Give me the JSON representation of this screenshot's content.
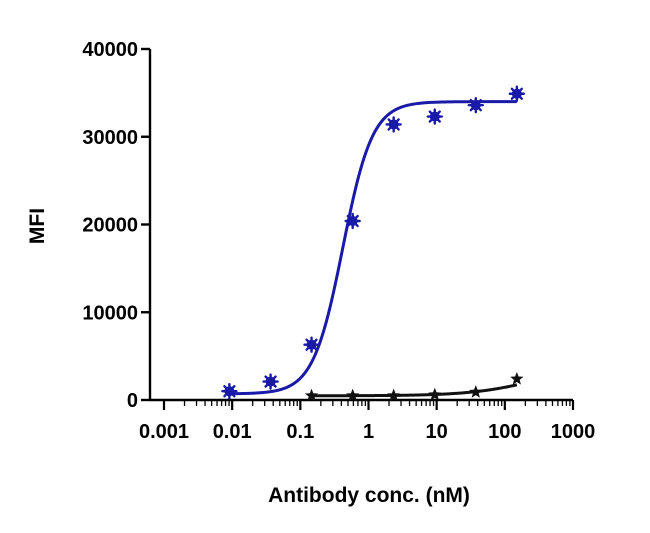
{
  "chart_data": {
    "type": "scatter",
    "title": "",
    "xlabel": "Antibody conc. (nM)",
    "ylabel": "MFI",
    "x_scale": "log",
    "xlim": [
      0.001,
      1000
    ],
    "ylim": [
      0,
      40000
    ],
    "x_ticks": [
      0.001,
      0.01,
      0.1,
      1,
      10,
      100,
      1000
    ],
    "x_tick_labels": [
      "0.001",
      "0.01",
      "0.1",
      "1",
      "10",
      "100",
      "1000"
    ],
    "y_ticks": [
      0,
      10000,
      20000,
      30000,
      40000
    ],
    "y_tick_labels": [
      "0",
      "10000",
      "20000",
      "30000",
      "40000"
    ],
    "grid": false,
    "legend": "none",
    "series": [
      {
        "color": "#1a1aa8",
        "marker": "asterisk",
        "x": [
          0.0091,
          0.0366,
          0.146,
          0.586,
          2.34,
          9.38,
          37.5,
          150
        ],
        "y": [
          1000,
          2100,
          6300,
          20400,
          31400,
          32300,
          33600,
          34900
        ],
        "curve": {
          "bottom": 700,
          "top": 34000,
          "ec50": 0.42,
          "hill": 2.0
        }
      },
      {
        "color": "#111111",
        "marker": "star",
        "x": [
          0.146,
          0.586,
          2.34,
          9.38,
          37.5,
          150
        ],
        "y": [
          500,
          500,
          500,
          600,
          900,
          2400
        ],
        "curve": {
          "bottom": 480,
          "top": 4200,
          "ec50": 320,
          "hill": 0.9
        }
      }
    ]
  }
}
